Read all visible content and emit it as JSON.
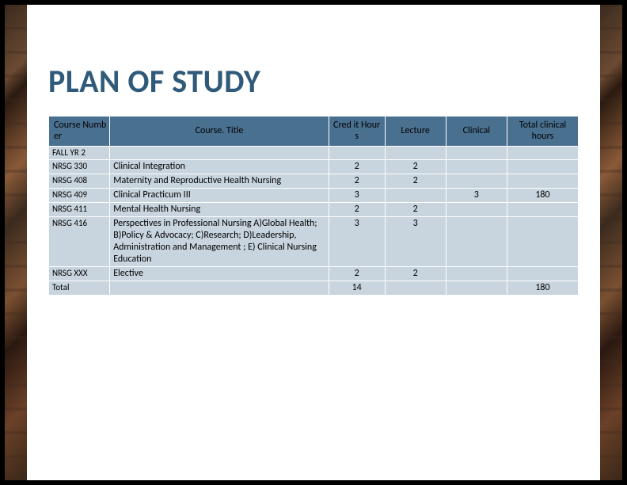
{
  "slide": {
    "title": "PLAN OF STUDY"
  },
  "table": {
    "headers": {
      "number": "Course Numb er",
      "title": "Course. Title",
      "credit": "Cred it Hour s",
      "lecture": "Lecture",
      "clinical": "Clinical",
      "total": "Total clinical hours"
    },
    "section": "FALL YR 2",
    "rows": [
      {
        "num": "NRSG 330",
        "title": "Clinical Integration",
        "credit": "2",
        "lecture": "2",
        "clinical": "",
        "total": ""
      },
      {
        "num": "NRSG 408",
        "title": "Maternity and Reproductive Health Nursing",
        "credit": "2",
        "lecture": "2",
        "clinical": "",
        "total": ""
      },
      {
        "num": "NRSG 409",
        "title": "Clinical Practicum III",
        "credit": "3",
        "lecture": "",
        "clinical": "3",
        "total": "180"
      },
      {
        "num": "NRSG 411",
        "title": "Mental Health Nursing",
        "credit": "2",
        "lecture": "2",
        "clinical": "",
        "total": ""
      },
      {
        "num": "NRSG 416",
        "title": "Perspectives in Professional Nursing A)Global Health; B)Policy & Advocacy; C)Research; D)Leadership, Administration and Management ; E) Clinical Nursing Education",
        "credit": "3",
        "lecture": "3",
        "clinical": "",
        "total": ""
      },
      {
        "num": "NRSG XXX",
        "title": "Elective",
        "credit": "2",
        "lecture": "2",
        "clinical": "",
        "total": ""
      }
    ],
    "total_row": {
      "num": "Total",
      "title": "",
      "credit": "14",
      "lecture": "",
      "clinical": "",
      "total": "180"
    }
  },
  "colors": {
    "title_color": "#305a7a",
    "header_bg": "#4a7090",
    "cell_bg": "#c8d4de"
  }
}
